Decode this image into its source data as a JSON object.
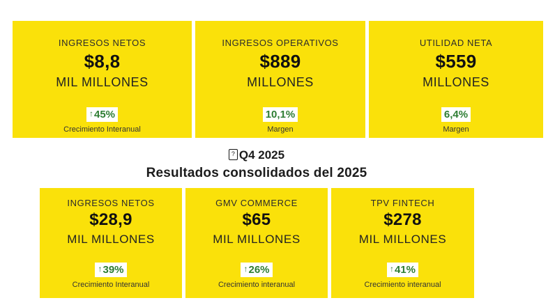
{
  "colors": {
    "card_yellow": "#fae10a",
    "accent_green": "#2e7d33",
    "text_ink": "#1c1c1c",
    "badge_background": "#ffffff"
  },
  "section_header": {
    "missing_glyph": "?",
    "line1": "Q4 2025",
    "line2": "Resultados consolidados del 2025"
  },
  "top_row": {
    "cards": [
      {
        "title": "INGRESOS NETOS",
        "value": "$8,8",
        "unit": "MIL MILLONES",
        "badge_arrow": "↑",
        "badge_value": "45%",
        "badge_label": "Crecimiento Interanual"
      },
      {
        "title": "INGRESOS OPERATIVOS",
        "value": "$889",
        "unit": "MILLONES",
        "badge_arrow": "",
        "badge_value": "10,1%",
        "badge_label": "Margen"
      },
      {
        "title": "UTILIDAD NETA",
        "value": "$559",
        "unit": "MILLONES",
        "badge_arrow": "",
        "badge_value": "6,4%",
        "badge_label": "Margen"
      }
    ]
  },
  "bottom_row": {
    "cards": [
      {
        "title": "INGRESOS NETOS",
        "value": "$28,9",
        "unit": "MIL MILLONES",
        "badge_arrow": "↑",
        "badge_value": "39%",
        "badge_label": "Crecimiento Interanual"
      },
      {
        "title": "GMV COMMERCE",
        "value": "$65",
        "unit": "MIL MILLONES",
        "badge_arrow": "↑",
        "badge_value": "26%",
        "badge_label": "Crecimiento interanual"
      },
      {
        "title": "TPV FINTECH",
        "value": "$278",
        "unit": "MIL MILLONES",
        "badge_arrow": "↑",
        "badge_value": "41%",
        "badge_label": "Crecimiento interanual"
      }
    ]
  }
}
